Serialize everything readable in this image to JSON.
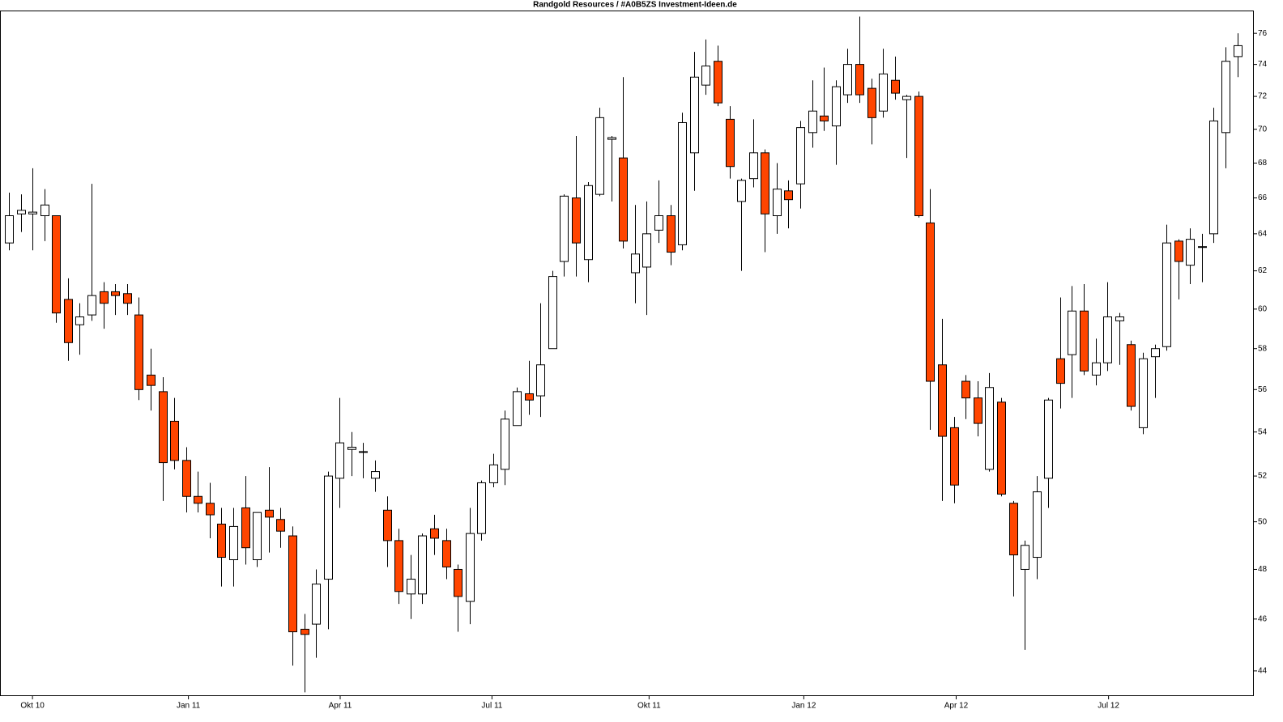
{
  "chart_data": {
    "type": "candlestick",
    "title": "Randgold Resources / #A0B5ZS Investment-Ideen.de",
    "open": [
      63.5,
      65.1,
      65.1,
      65.0,
      65.0,
      60.5,
      59.2,
      59.7,
      60.9,
      60.9,
      60.8,
      59.7,
      56.7,
      55.9,
      54.5,
      52.7,
      51.1,
      50.8,
      49.9,
      48.4,
      50.6,
      48.4,
      50.5,
      50.1,
      49.4,
      45.6,
      45.8,
      47.6,
      51.9,
      53.2,
      53.1,
      51.9,
      50.5,
      49.2,
      47.0,
      47.0,
      49.7,
      49.2,
      48.0,
      46.7,
      49.5,
      51.7,
      52.3,
      54.3,
      55.8,
      55.7,
      58.0,
      62.5,
      66.0,
      62.6,
      66.2,
      69.4,
      68.3,
      61.9,
      62.2,
      64.2,
      65.0,
      63.4,
      68.6,
      72.7,
      74.2,
      70.6,
      65.8,
      67.1,
      68.6,
      65.0,
      66.4,
      66.8,
      69.8,
      70.8,
      70.2,
      72.1,
      74.0,
      72.5,
      71.1,
      73.0,
      71.8,
      72.0,
      64.6,
      57.2,
      54.2,
      56.4,
      55.6,
      52.3,
      55.4,
      50.8,
      48.0,
      48.5,
      51.9,
      57.5,
      57.7,
      59.9,
      56.7,
      57.3,
      59.4,
      58.2,
      54.2,
      57.6,
      58.1,
      63.6,
      62.3,
      63.3,
      64.0,
      69.8,
      74.5
    ],
    "high": [
      66.3,
      66.2,
      67.7,
      66.5,
      65.0,
      61.6,
      60.3,
      66.8,
      61.4,
      61.3,
      61.3,
      60.6,
      58.0,
      56.6,
      55.6,
      53.3,
      52.2,
      51.7,
      50.6,
      50.6,
      52.0,
      50.4,
      52.4,
      50.6,
      49.8,
      46.2,
      48.0,
      52.2,
      55.6,
      54.0,
      53.5,
      52.7,
      51.1,
      49.7,
      48.6,
      49.5,
      50.3,
      49.7,
      48.2,
      50.6,
      51.8,
      53.0,
      55.0,
      56.1,
      57.4,
      60.3,
      62.0,
      66.2,
      69.6,
      66.9,
      71.3,
      69.6,
      73.2,
      65.6,
      65.8,
      67.0,
      65.6,
      71.0,
      74.8,
      75.6,
      75.2,
      71.4,
      67.1,
      70.6,
      68.8,
      68.0,
      67.0,
      70.5,
      73.0,
      73.8,
      73.0,
      75.0,
      77.1,
      73.1,
      75.0,
      74.5,
      72.1,
      72.3,
      66.5,
      59.5,
      54.7,
      56.7,
      56.4,
      56.8,
      55.6,
      50.9,
      49.2,
      52.0,
      55.6,
      60.6,
      61.2,
      61.3,
      58.5,
      61.4,
      59.8,
      58.4,
      57.8,
      58.2,
      64.5,
      63.7,
      64.3,
      64.0,
      71.3,
      75.1,
      76.0
    ],
    "low": [
      63.1,
      64.1,
      63.1,
      63.6,
      59.3,
      57.4,
      57.7,
      59.4,
      59.0,
      59.7,
      59.7,
      55.5,
      55.0,
      50.9,
      52.3,
      50.4,
      50.4,
      49.3,
      47.3,
      47.3,
      48.2,
      48.1,
      48.7,
      48.9,
      44.2,
      43.2,
      44.5,
      45.6,
      50.6,
      52.0,
      51.9,
      51.3,
      48.1,
      46.6,
      46.0,
      46.6,
      48.6,
      47.6,
      45.5,
      45.8,
      49.2,
      51.5,
      51.6,
      54.3,
      54.8,
      54.7,
      58.0,
      61.7,
      61.7,
      61.4,
      66.1,
      65.8,
      63.2,
      60.3,
      59.7,
      63.5,
      62.3,
      63.1,
      66.4,
      72.1,
      71.4,
      67.1,
      62.0,
      66.6,
      63.0,
      64.0,
      64.3,
      65.4,
      68.9,
      69.9,
      67.9,
      71.6,
      71.6,
      69.1,
      70.7,
      71.8,
      68.3,
      64.9,
      54.1,
      50.9,
      50.8,
      54.6,
      53.8,
      52.2,
      51.1,
      46.9,
      44.8,
      47.6,
      50.6,
      55.1,
      55.6,
      56.7,
      56.2,
      56.9,
      57.2,
      55.0,
      53.9,
      55.6,
      57.9,
      60.5,
      61.3,
      61.4,
      63.5,
      67.7,
      73.2
    ],
    "close": [
      65.0,
      65.3,
      65.2,
      65.6,
      59.8,
      58.3,
      59.6,
      60.7,
      60.3,
      60.7,
      60.3,
      56.0,
      56.2,
      52.6,
      52.7,
      51.1,
      50.8,
      50.3,
      48.5,
      49.8,
      48.9,
      50.4,
      50.2,
      49.6,
      45.5,
      45.4,
      47.4,
      52.0,
      53.5,
      53.3,
      53.1,
      52.2,
      49.2,
      47.1,
      47.6,
      49.4,
      49.3,
      48.1,
      46.9,
      49.5,
      51.7,
      52.5,
      54.6,
      55.9,
      55.5,
      57.2,
      61.7,
      66.1,
      63.5,
      66.7,
      70.7,
      69.5,
      63.6,
      62.9,
      64.0,
      65.0,
      63.0,
      70.4,
      73.2,
      73.9,
      71.6,
      67.8,
      67.0,
      68.6,
      65.1,
      66.5,
      65.9,
      70.1,
      71.1,
      70.5,
      72.6,
      74.0,
      72.1,
      70.7,
      73.4,
      72.2,
      72.0,
      65.0,
      56.4,
      53.8,
      51.6,
      55.6,
      54.4,
      56.1,
      51.2,
      48.6,
      49.0,
      51.3,
      55.5,
      56.3,
      59.9,
      56.9,
      57.3,
      59.6,
      59.6,
      55.2,
      57.5,
      58.0,
      63.5,
      62.5,
      63.7,
      63.3,
      70.5,
      74.2,
      75.2
    ],
    "up_color": "#ffffff",
    "down_color": "#ff4500",
    "edge_color": "#000000",
    "log_scale": true,
    "ylim": [
      43.06,
      77.5
    ],
    "yticks": [
      44,
      46,
      48,
      50,
      52,
      54,
      56,
      58,
      60,
      62,
      64,
      66,
      68,
      70,
      72,
      74,
      76
    ],
    "xlim": [
      -0.75,
      105.4
    ],
    "xticks": [
      {
        "value": 2,
        "label": "Okt 10"
      },
      {
        "value": 15.2,
        "label": "Jan 11"
      },
      {
        "value": 28.05,
        "label": "Apr 11"
      },
      {
        "value": 40.9,
        "label": "Jul 11"
      },
      {
        "value": 54.2,
        "label": "Okt 11"
      },
      {
        "value": 67.3,
        "label": "Jan 12"
      },
      {
        "value": 80.2,
        "label": "Apr 12"
      },
      {
        "value": 93.1,
        "label": "Jul 12"
      }
    ]
  }
}
